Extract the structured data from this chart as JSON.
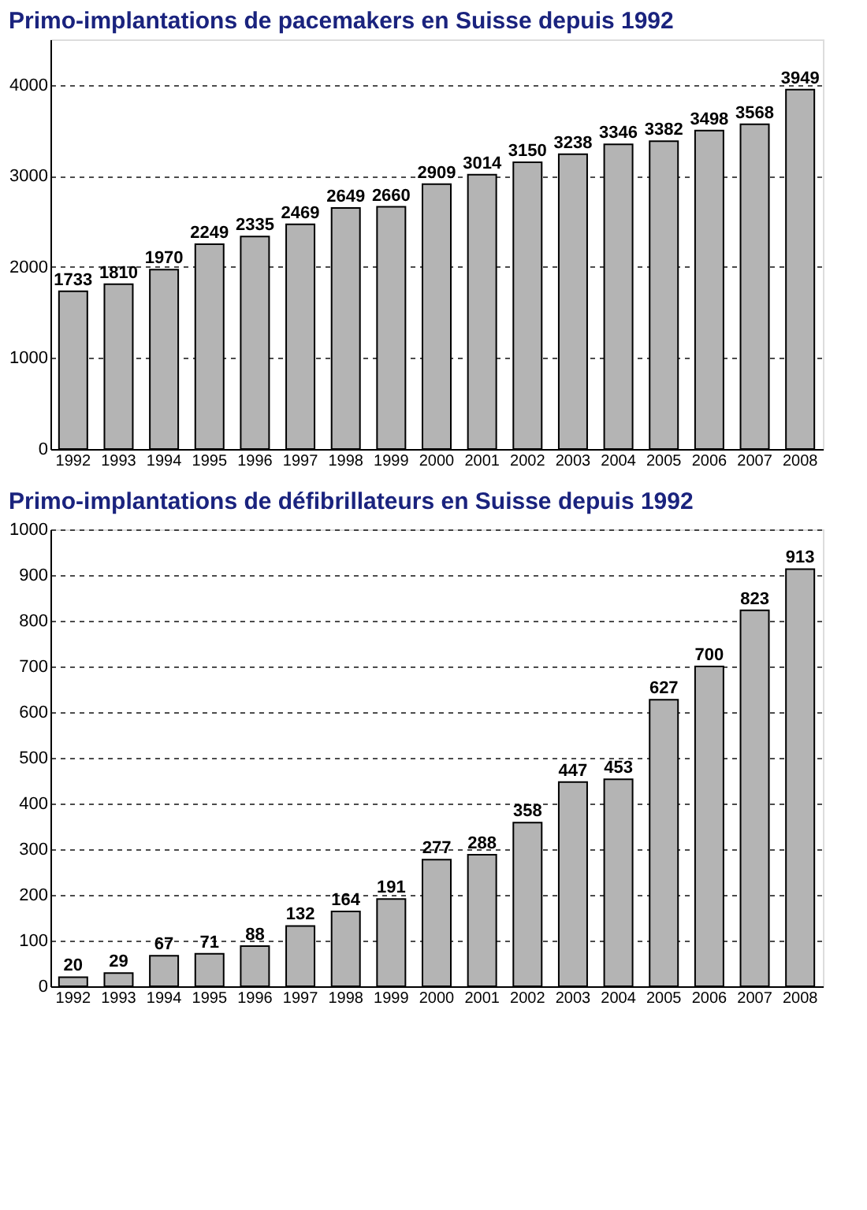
{
  "chart_data": [
    {
      "type": "bar",
      "title": "Primo-implantations de pacemakers en Suisse depuis 1992",
      "categories": [
        "1992",
        "1993",
        "1994",
        "1995",
        "1996",
        "1997",
        "1998",
        "1999",
        "2000",
        "2001",
        "2002",
        "2003",
        "2004",
        "2005",
        "2006",
        "2007",
        "2008"
      ],
      "values": [
        1733,
        1810,
        1970,
        2249,
        2335,
        2469,
        2649,
        2660,
        2909,
        3014,
        3150,
        3238,
        3346,
        3382,
        3498,
        3568,
        3949
      ],
      "color": "#b4b4b4",
      "ylim": [
        0,
        4500
      ],
      "yticks": [
        0,
        1000,
        2000,
        3000,
        4000
      ],
      "grid": "y",
      "data_labels": true
    },
    {
      "type": "bar",
      "title": "Primo-implantations de défibrillateurs en Suisse depuis 1992",
      "categories": [
        "1992",
        "1993",
        "1994",
        "1995",
        "1996",
        "1997",
        "1998",
        "1999",
        "2000",
        "2001",
        "2002",
        "2003",
        "2004",
        "2005",
        "2006",
        "2007",
        "2008"
      ],
      "values": [
        20,
        29,
        67,
        71,
        88,
        132,
        164,
        191,
        277,
        288,
        358,
        447,
        453,
        627,
        700,
        823,
        913
      ],
      "color": "#b4b4b4",
      "ylim": [
        0,
        1000
      ],
      "yticks": [
        0,
        100,
        200,
        300,
        400,
        500,
        600,
        700,
        800,
        900,
        1000
      ],
      "grid": "y",
      "data_labels": true
    }
  ]
}
